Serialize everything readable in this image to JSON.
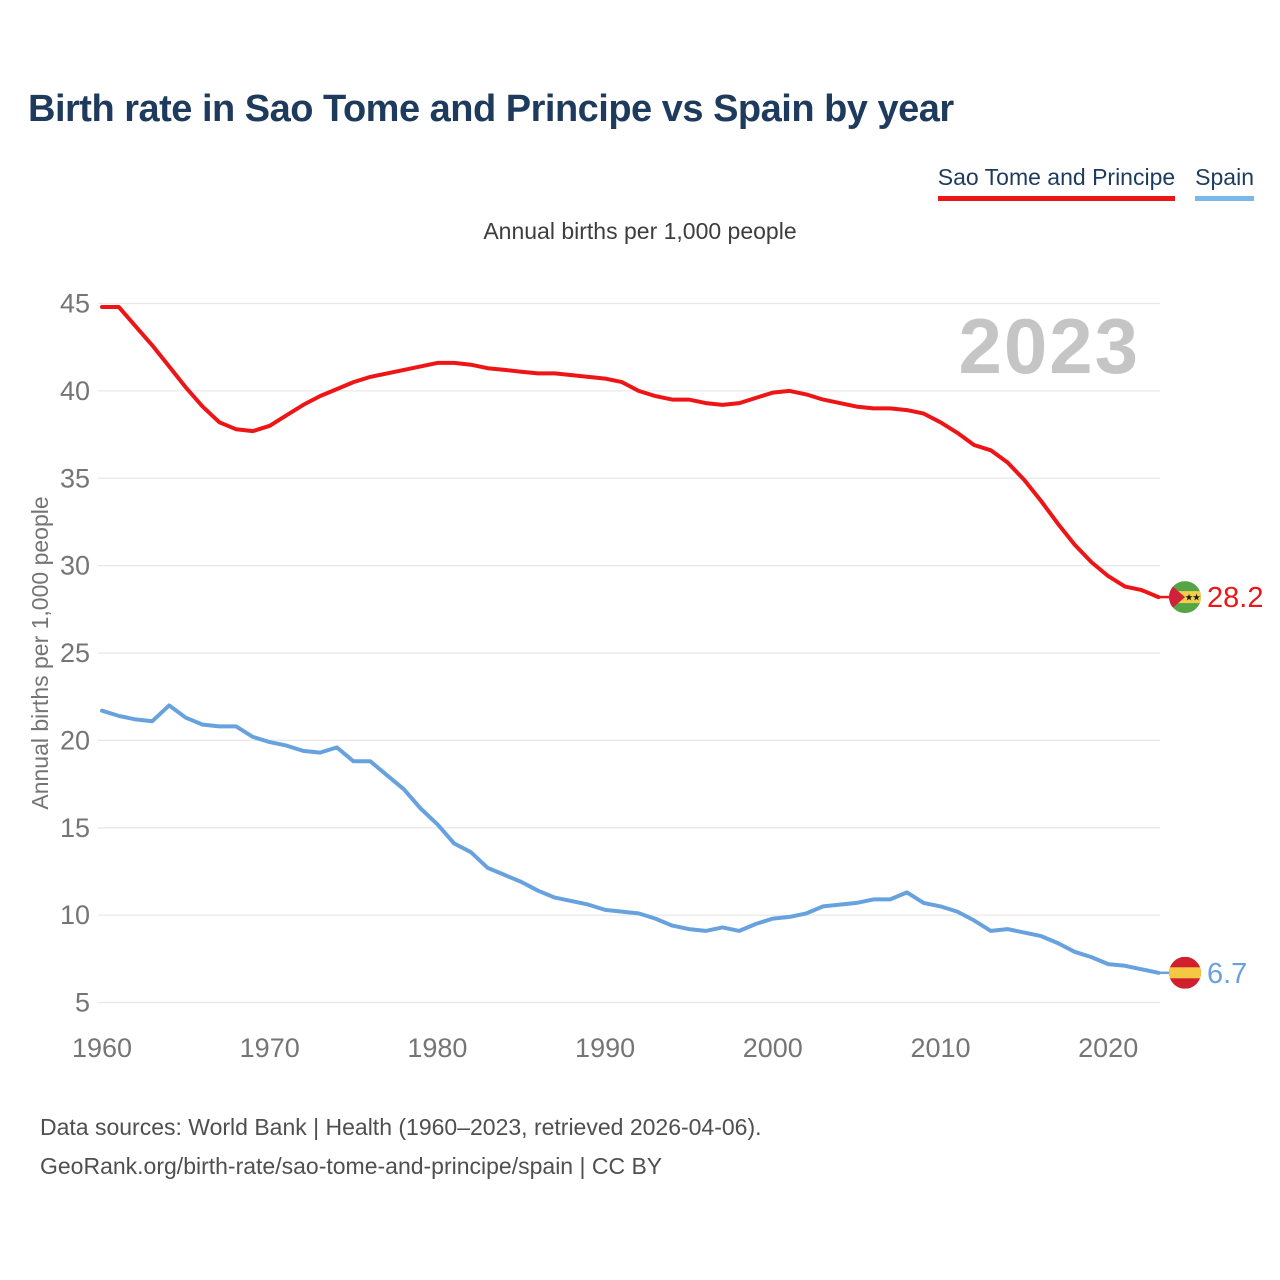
{
  "header": {
    "title": "Birth rate in Sao Tome and Principe vs Spain by year"
  },
  "legend": [
    {
      "label": "Sao Tome and Principe",
      "color": "#ed1515"
    },
    {
      "label": "Spain",
      "color": "#7db7e8"
    }
  ],
  "subtitle": "Annual births per 1,000 people",
  "watermark": "2023",
  "footer": {
    "line1": "Data sources: World Bank | Health (1960–2023, retrieved 2026-04-06).",
    "line2": "GeoRank.org/birth-rate/sao-tome-and-principe/spain | CC BY"
  },
  "colors": {
    "sao_tome_line": "#ed1515",
    "spain_line": "#68a2de",
    "title_text": "#1e3a5c",
    "axis_text": "#757575",
    "gridline": "#e8e8e8",
    "watermark": "#c5c5c5"
  },
  "chart_data": {
    "type": "line",
    "title": "Birth rate in Sao Tome and Principe vs Spain by year",
    "subtitle": "Annual births per 1,000 people",
    "xlabel": "",
    "ylabel": "Annual births per 1,000 people",
    "x": [
      1960,
      1961,
      1962,
      1963,
      1964,
      1965,
      1966,
      1967,
      1968,
      1969,
      1970,
      1971,
      1972,
      1973,
      1974,
      1975,
      1976,
      1977,
      1978,
      1979,
      1980,
      1981,
      1982,
      1983,
      1984,
      1985,
      1986,
      1987,
      1988,
      1989,
      1990,
      1991,
      1992,
      1993,
      1994,
      1995,
      1996,
      1997,
      1998,
      1999,
      2000,
      2001,
      2002,
      2003,
      2004,
      2005,
      2006,
      2007,
      2008,
      2009,
      2010,
      2011,
      2012,
      2013,
      2014,
      2015,
      2016,
      2017,
      2018,
      2019,
      2020,
      2021,
      2022,
      2023
    ],
    "xticks": [
      1960,
      1970,
      1980,
      1990,
      2000,
      2010,
      2020
    ],
    "yticks": [
      45,
      40,
      35,
      30,
      25,
      20,
      15,
      10,
      5
    ],
    "ylim": [
      5,
      45
    ],
    "grid": "horizontal",
    "legend_position": "top-right",
    "series": [
      {
        "name": "Sao Tome and Principe",
        "color": "#ed1515",
        "flag": "sao-tome-and-principe",
        "end_label": "28.2",
        "values": [
          44.8,
          44.8,
          43.7,
          42.6,
          41.4,
          40.2,
          39.1,
          38.2,
          37.8,
          37.7,
          38.0,
          38.6,
          39.2,
          39.7,
          40.1,
          40.5,
          40.8,
          41.0,
          41.2,
          41.4,
          41.6,
          41.6,
          41.5,
          41.3,
          41.2,
          41.1,
          41.0,
          41.0,
          40.9,
          40.8,
          40.7,
          40.5,
          40.0,
          39.7,
          39.5,
          39.5,
          39.3,
          39.2,
          39.3,
          39.6,
          39.9,
          40.0,
          39.8,
          39.5,
          39.3,
          39.1,
          39.0,
          39.0,
          38.9,
          38.7,
          38.2,
          37.6,
          36.9,
          36.6,
          35.9,
          34.9,
          33.7,
          32.4,
          31.2,
          30.2,
          29.4,
          28.8,
          28.6,
          28.2
        ]
      },
      {
        "name": "Spain",
        "color": "#68a2de",
        "flag": "spain",
        "end_label": "6.7",
        "values": [
          21.7,
          21.4,
          21.2,
          21.1,
          22.0,
          21.3,
          20.9,
          20.8,
          20.8,
          20.2,
          19.9,
          19.7,
          19.4,
          19.3,
          19.6,
          18.8,
          18.8,
          18.0,
          17.2,
          16.1,
          15.2,
          14.1,
          13.6,
          12.7,
          12.3,
          11.9,
          11.4,
          11.0,
          10.8,
          10.6,
          10.3,
          10.2,
          10.1,
          9.8,
          9.4,
          9.2,
          9.1,
          9.3,
          9.1,
          9.5,
          9.8,
          9.9,
          10.1,
          10.5,
          10.6,
          10.7,
          10.9,
          10.9,
          11.3,
          10.7,
          10.5,
          10.2,
          9.7,
          9.1,
          9.2,
          9.0,
          8.8,
          8.4,
          7.9,
          7.6,
          7.2,
          7.1,
          6.9,
          6.7
        ]
      }
    ],
    "flag_colors": {
      "sao_tome_green": "#55a546",
      "sao_tome_yellow": "#f0d04a",
      "sao_tome_red": "#cf2137",
      "sao_tome_star": "#1a1a1a",
      "spain_red": "#d02030",
      "spain_yellow": "#f5c843"
    }
  }
}
